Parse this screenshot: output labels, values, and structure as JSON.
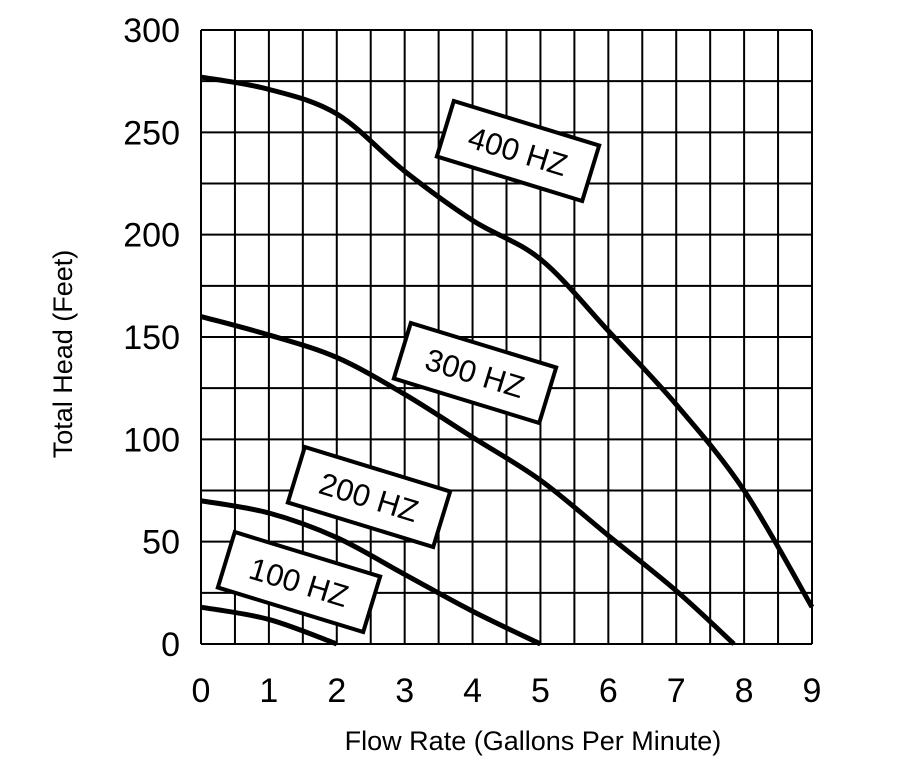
{
  "chart_data": {
    "type": "line",
    "title": "",
    "xlabel": "Flow Rate (Gallons Per Minute)",
    "ylabel": "Total Head (Feet)",
    "xlim": [
      0,
      9
    ],
    "ylim": [
      0,
      300
    ],
    "x_ticks": [
      "0",
      "1",
      "2",
      "3",
      "4",
      "5",
      "6",
      "7",
      "8",
      "9"
    ],
    "y_ticks": [
      "0",
      "50",
      "100",
      "150",
      "200",
      "250",
      "300"
    ],
    "grid": true,
    "grid_x_step": 0.5,
    "grid_y_step": 25,
    "colors": {
      "line": "#000000",
      "grid": "#000000",
      "background": "#ffffff"
    },
    "series": [
      {
        "name": "400 HZ",
        "x": [
          0,
          1,
          2,
          3,
          4,
          5,
          6,
          7,
          8,
          9
        ],
        "y": [
          277,
          271,
          259,
          231,
          207,
          188,
          153,
          117,
          75,
          18
        ]
      },
      {
        "name": "300 HZ",
        "x": [
          0,
          1,
          2,
          3,
          4,
          5,
          6,
          7,
          7.85
        ],
        "y": [
          160,
          151,
          140,
          122,
          101,
          80,
          53,
          26,
          0
        ]
      },
      {
        "name": "200 HZ",
        "x": [
          0,
          1,
          2,
          3,
          4,
          5
        ],
        "y": [
          70,
          64,
          52,
          34,
          16,
          0
        ]
      },
      {
        "name": "100 HZ",
        "x": [
          0,
          1,
          2
        ],
        "y": [
          18,
          12,
          0
        ]
      }
    ]
  }
}
